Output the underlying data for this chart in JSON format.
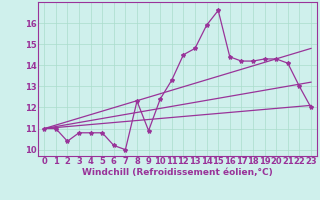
{
  "xlabel": "Windchill (Refroidissement éolien,°C)",
  "background_color": "#cff0ec",
  "grid_color": "#aaddcc",
  "line_color": "#993399",
  "xlim": [
    -0.5,
    23.5
  ],
  "ylim": [
    9.7,
    17.0
  ],
  "yticks": [
    10,
    11,
    12,
    13,
    14,
    15,
    16
  ],
  "xticks": [
    0,
    1,
    2,
    3,
    4,
    5,
    6,
    7,
    8,
    9,
    10,
    11,
    12,
    13,
    14,
    15,
    16,
    17,
    18,
    19,
    20,
    21,
    22,
    23
  ],
  "series1_x": [
    0,
    1,
    2,
    3,
    4,
    5,
    6,
    7,
    8,
    9,
    10,
    11,
    12,
    13,
    14,
    15,
    16,
    17,
    18,
    19,
    20,
    21,
    22,
    23
  ],
  "series1_y": [
    11.0,
    11.0,
    10.4,
    10.8,
    10.8,
    10.8,
    10.2,
    10.0,
    12.3,
    10.9,
    12.4,
    13.3,
    14.5,
    14.8,
    15.9,
    16.6,
    14.4,
    14.2,
    14.2,
    14.3,
    14.3,
    14.1,
    13.0,
    12.0
  ],
  "trend1_x": [
    0,
    23
  ],
  "trend1_y": [
    11.0,
    12.1
  ],
  "trend2_x": [
    0,
    23
  ],
  "trend2_y": [
    11.0,
    14.8
  ],
  "trend3_x": [
    0,
    23
  ],
  "trend3_y": [
    11.0,
    13.2
  ],
  "xlabel_fontsize": 6.5,
  "tick_fontsize": 6.0
}
